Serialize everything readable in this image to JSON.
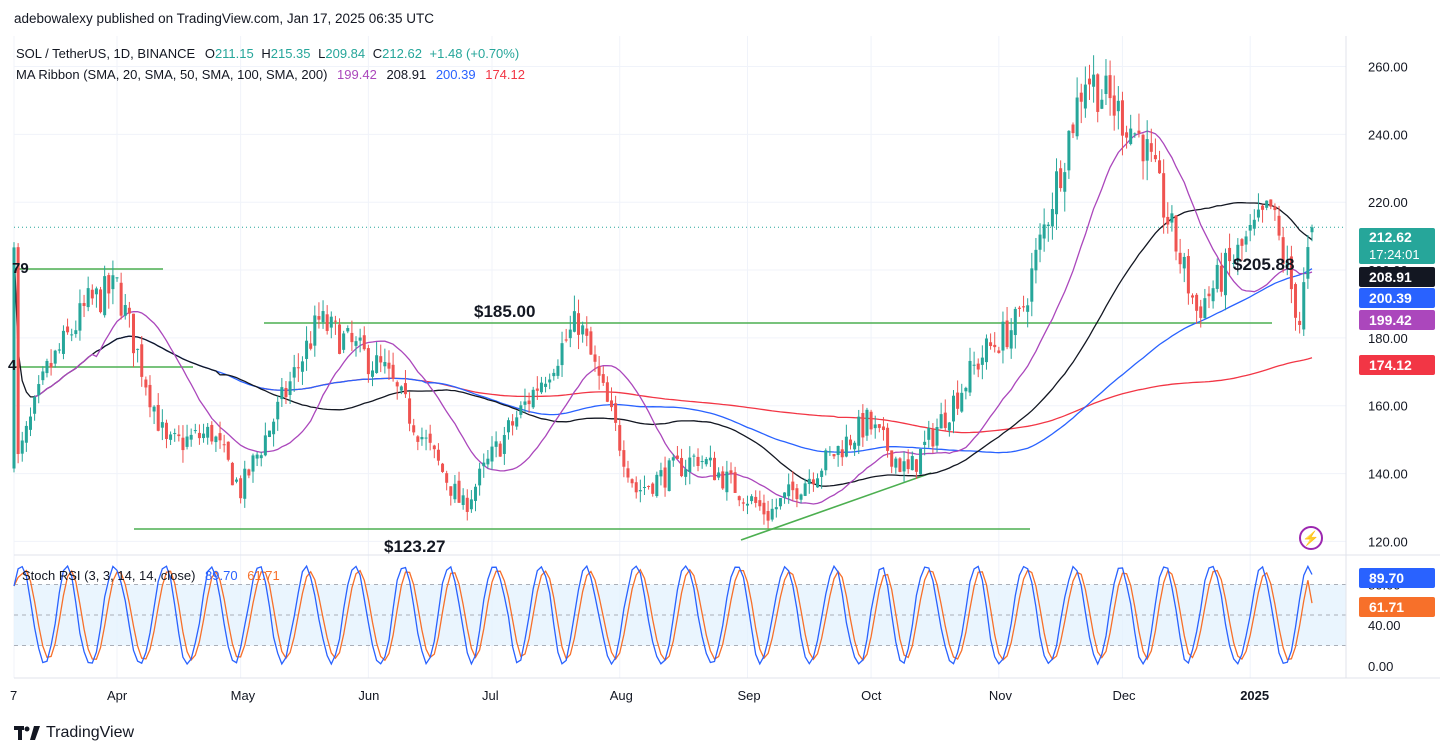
{
  "publisher_line": "adebowalexy published on TradingView.com, Jan 17, 2025 06:35 UTC",
  "legend": {
    "symbol": "SOL / TetherUS, 1D, BINANCE",
    "o_label": "O",
    "o_val": "211.15",
    "h_label": "H",
    "h_val": "215.35",
    "l_label": "L",
    "l_val": "209.84",
    "c_label": "C",
    "c_val": "212.62",
    "change": "+1.48 (+0.70%)",
    "ma_label": "MA Ribbon (SMA, 20, SMA, 50, SMA, 100, SMA, 200)",
    "ma_vals": [
      "199.42",
      "208.91",
      "200.39",
      "174.12"
    ],
    "stoch_label": "Stoch RSI (3, 3, 14, 14, close)",
    "stoch_k": "89.70",
    "stoch_d": "61.71"
  },
  "colors": {
    "up": "#26a69a",
    "down": "#ef5350",
    "sma20": "#ab47bc",
    "sma50": "#131722",
    "sma100": "#2962ff",
    "sma200": "#f23645",
    "k": "#2962ff",
    "d": "#f7702a",
    "level": "#4caf50"
  },
  "price_tags": [
    {
      "text": "212.62",
      "sub": "17:24:01",
      "color": "#26a69a"
    },
    {
      "text": "208.91",
      "color": "#131722"
    },
    {
      "text": "200.39",
      "color": "#2962ff"
    },
    {
      "text": "199.42",
      "color": "#ab47bc"
    },
    {
      "text": "174.12",
      "color": "#f23645"
    }
  ],
  "stoch_tags": [
    {
      "text": "89.70",
      "color": "#2962ff"
    },
    {
      "text": "61.71",
      "color": "#f7702a"
    }
  ],
  "annotations": {
    "a185": "$185.00",
    "a123": "$123.27",
    "a205": "$205.88",
    "left_cut_1": "79",
    "left_cut_2": "4"
  },
  "footer": "TradingView",
  "chart_data": {
    "type": "candlestick",
    "title": "SOL / TetherUS, 1D, BINANCE",
    "price_axis": {
      "ticks": [
        120,
        140,
        160,
        180,
        200,
        220,
        240,
        260
      ],
      "range": [
        116,
        269
      ]
    },
    "time_axis": {
      "labels": [
        "7",
        "Apr",
        "May",
        "Jun",
        "Jul",
        "Aug",
        "Sep",
        "Oct",
        "Nov",
        "Dec",
        "2025"
      ],
      "range": [
        "2024-03-07",
        "2025-01-16"
      ]
    },
    "candles_approx": [
      {
        "date": "2024-03-15",
        "close": 170
      },
      {
        "date": "2024-03-25",
        "close": 190
      },
      {
        "date": "2024-04-01",
        "close": 195
      },
      {
        "date": "2024-04-13",
        "close": 148
      },
      {
        "date": "2024-04-24",
        "close": 152
      },
      {
        "date": "2024-05-01",
        "close": 135
      },
      {
        "date": "2024-05-20",
        "close": 185
      },
      {
        "date": "2024-06-05",
        "close": 170
      },
      {
        "date": "2024-06-24",
        "close": 130
      },
      {
        "date": "2024-07-01",
        "close": 145
      },
      {
        "date": "2024-07-22",
        "close": 185
      },
      {
        "date": "2024-08-05",
        "close": 135
      },
      {
        "date": "2024-08-20",
        "close": 145
      },
      {
        "date": "2024-09-06",
        "close": 128
      },
      {
        "date": "2024-09-30",
        "close": 155
      },
      {
        "date": "2024-10-10",
        "close": 140
      },
      {
        "date": "2024-10-28",
        "close": 175
      },
      {
        "date": "2024-11-06",
        "close": 185
      },
      {
        "date": "2024-11-22",
        "close": 258
      },
      {
        "date": "2024-12-06",
        "close": 238
      },
      {
        "date": "2024-12-19",
        "close": 188
      },
      {
        "date": "2025-01-06",
        "close": 218
      },
      {
        "date": "2025-01-13",
        "close": 185
      },
      {
        "date": "2025-01-16",
        "close": 212.62
      }
    ],
    "moving_averages": [
      {
        "name": "SMA 20",
        "last": 199.42
      },
      {
        "name": "SMA 50",
        "last": 208.91
      },
      {
        "name": "SMA 100",
        "last": 200.39
      },
      {
        "name": "SMA 200",
        "last": 174.12
      }
    ],
    "levels": [
      {
        "label": "$185.00",
        "price": 185
      },
      {
        "label": "$123.27",
        "price": 123.27
      },
      {
        "label": "$205.88",
        "price": 205.88
      }
    ],
    "stoch_rsi": {
      "k": 89.7,
      "d": 61.71,
      "ticks": [
        0,
        40,
        80
      ],
      "bands": [
        20,
        80
      ]
    }
  }
}
